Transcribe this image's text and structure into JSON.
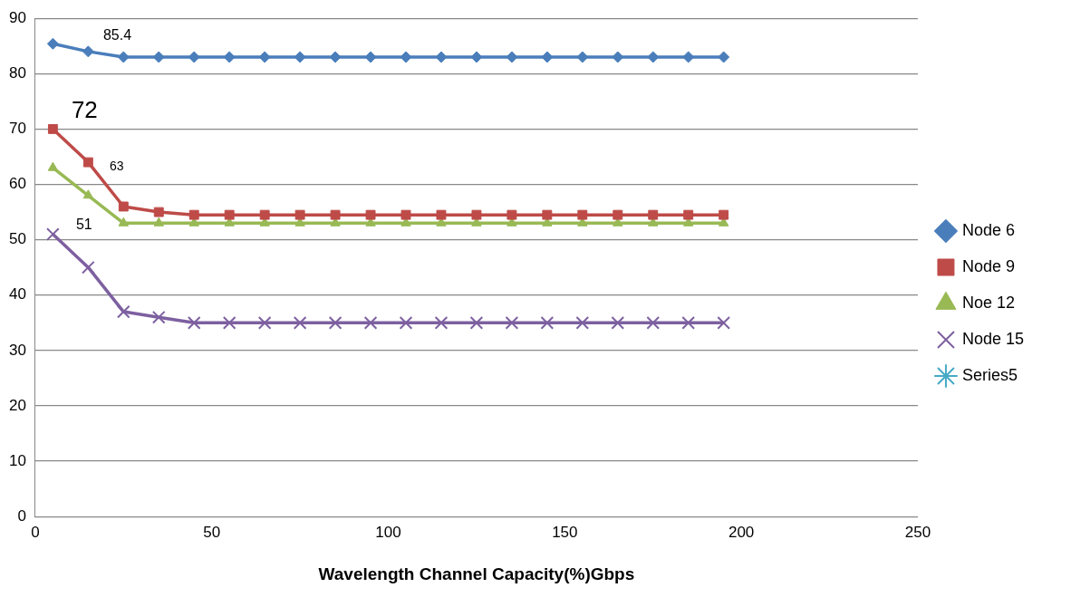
{
  "chart_data": {
    "type": "line",
    "xlabel": "Wavelength Channel Capacity(%)Gbps",
    "x": [
      5,
      15,
      25,
      35,
      45,
      55,
      65,
      75,
      85,
      95,
      105,
      115,
      125,
      135,
      145,
      155,
      165,
      175,
      185,
      195
    ],
    "series": [
      {
        "name": "Node 6",
        "color": "#4a7ebb",
        "marker": "diamond",
        "values": [
          85.4,
          84,
          83,
          83,
          83,
          83,
          83,
          83,
          83,
          83,
          83,
          83,
          83,
          83,
          83,
          83,
          83,
          83,
          83,
          83
        ]
      },
      {
        "name": "Node 9",
        "color": "#be4b48",
        "marker": "square",
        "values": [
          70,
          64,
          56,
          55,
          54.5,
          54.5,
          54.5,
          54.5,
          54.5,
          54.5,
          54.5,
          54.5,
          54.5,
          54.5,
          54.5,
          54.5,
          54.5,
          54.5,
          54.5,
          54.5
        ]
      },
      {
        "name": "Noe 12",
        "color": "#98b954",
        "marker": "triangle",
        "values": [
          63,
          58,
          53,
          53,
          53,
          53,
          53,
          53,
          53,
          53,
          53,
          53,
          53,
          53,
          53,
          53,
          53,
          53,
          53,
          53
        ]
      },
      {
        "name": "Node 15",
        "color": "#7d60a0",
        "marker": "cross",
        "values": [
          51,
          45,
          37,
          36,
          35,
          35,
          35,
          35,
          35,
          35,
          35,
          35,
          35,
          35,
          35,
          35,
          35,
          35,
          35,
          35
        ]
      },
      {
        "name": "Series5",
        "color": "#46aac5",
        "marker": "star",
        "values": [
          null,
          null,
          null,
          null,
          null,
          null,
          null,
          null,
          null,
          null,
          null,
          null,
          null,
          null,
          null,
          null,
          null,
          null,
          null,
          null
        ]
      }
    ],
    "xlim": [
      0,
      250
    ],
    "xticks": [
      0,
      50,
      100,
      150,
      200,
      250
    ],
    "ylim": [
      0,
      90
    ],
    "yticks": [
      0,
      10,
      20,
      30,
      40,
      50,
      60,
      70,
      80,
      90
    ],
    "grid": "y",
    "legend": "right",
    "line_style": "solid",
    "annotations": [
      "85.4",
      "72",
      "63",
      "51"
    ]
  }
}
